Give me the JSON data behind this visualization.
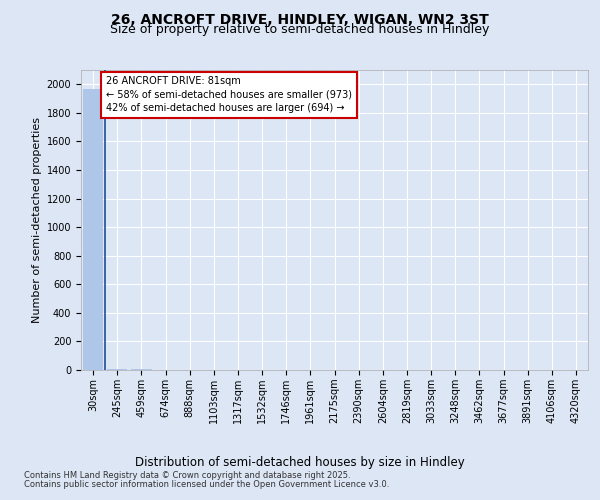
{
  "title1": "26, ANCROFT DRIVE, HINDLEY, WIGAN, WN2 3ST",
  "title2": "Size of property relative to semi-detached houses in Hindley",
  "xlabel": "Distribution of semi-detached houses by size in Hindley",
  "ylabel": "Number of semi-detached properties",
  "categories": [
    "30sqm",
    "245sqm",
    "459sqm",
    "674sqm",
    "888sqm",
    "1103sqm",
    "1317sqm",
    "1532sqm",
    "1746sqm",
    "1961sqm",
    "2175sqm",
    "2390sqm",
    "2604sqm",
    "2819sqm",
    "3033sqm",
    "3248sqm",
    "3462sqm",
    "3677sqm",
    "3891sqm",
    "4106sqm",
    "4320sqm"
  ],
  "values": [
    1969,
    8,
    4,
    2,
    1,
    1,
    1,
    1,
    1,
    1,
    1,
    1,
    1,
    1,
    1,
    1,
    1,
    1,
    1,
    1,
    1
  ],
  "bar_color": "#aec6e8",
  "vline_color": "#1f4e9c",
  "annotation_box_edgecolor": "#cc0000",
  "annotation_text_line1": "26 ANCROFT DRIVE: 81sqm",
  "annotation_text_line2": "← 58% of semi-detached houses are smaller (973)",
  "annotation_text_line3": "42% of semi-detached houses are larger (694) →",
  "ylim": [
    0,
    2100
  ],
  "yticks": [
    0,
    200,
    400,
    600,
    800,
    1000,
    1200,
    1400,
    1600,
    1800,
    2000
  ],
  "background_color": "#dce6f5",
  "grid_color": "#ffffff",
  "title_fontsize": 10,
  "subtitle_fontsize": 9,
  "tick_fontsize": 7,
  "ylabel_fontsize": 8,
  "xlabel_fontsize": 8.5,
  "footer_line1": "Contains HM Land Registry data © Crown copyright and database right 2025.",
  "footer_line2": "Contains public sector information licensed under the Open Government Licence v3.0."
}
